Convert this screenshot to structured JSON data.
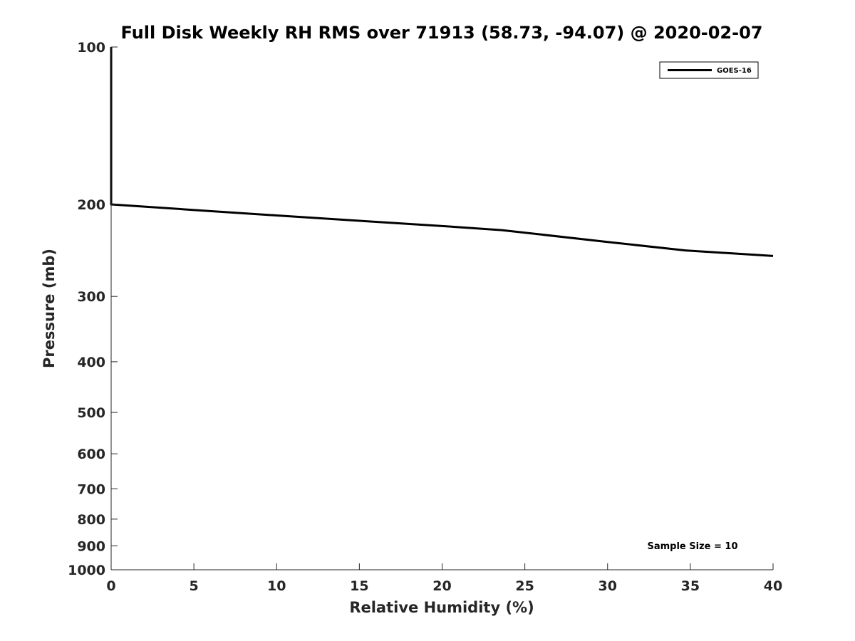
{
  "chart_data": {
    "type": "line",
    "title": "Full Disk Weekly RH RMS over 71913 (58.73, -94.07) @ 2020-02-07",
    "xlabel": "Relative Humidity (%)",
    "ylabel": "Pressure (mb)",
    "xlim": [
      0,
      40
    ],
    "ylim": [
      100,
      1000
    ],
    "y_scale": "log",
    "y_reversed": true,
    "grid": false,
    "legend_position": "top-right",
    "x_ticks": [
      "0",
      "5",
      "10",
      "15",
      "20",
      "25",
      "30",
      "35",
      "40"
    ],
    "y_ticks": [
      "100",
      "200",
      "300",
      "400",
      "500",
      "600",
      "700",
      "800",
      "900",
      "1000"
    ],
    "series": [
      {
        "name": "GOES-16",
        "color": "#000000",
        "points": [
          {
            "x": 0.0,
            "p": 100
          },
          {
            "x": 0.0,
            "p": 200
          },
          {
            "x": 5.0,
            "p": 205
          },
          {
            "x": 10.0,
            "p": 210
          },
          {
            "x": 15.0,
            "p": 215
          },
          {
            "x": 20.0,
            "p": 220
          },
          {
            "x": 23.6,
            "p": 224
          },
          {
            "x": 30.0,
            "p": 236
          },
          {
            "x": 34.7,
            "p": 245
          },
          {
            "x": 40.0,
            "p": 251
          }
        ]
      }
    ],
    "annotations": [
      "Sample Size = 10"
    ]
  }
}
